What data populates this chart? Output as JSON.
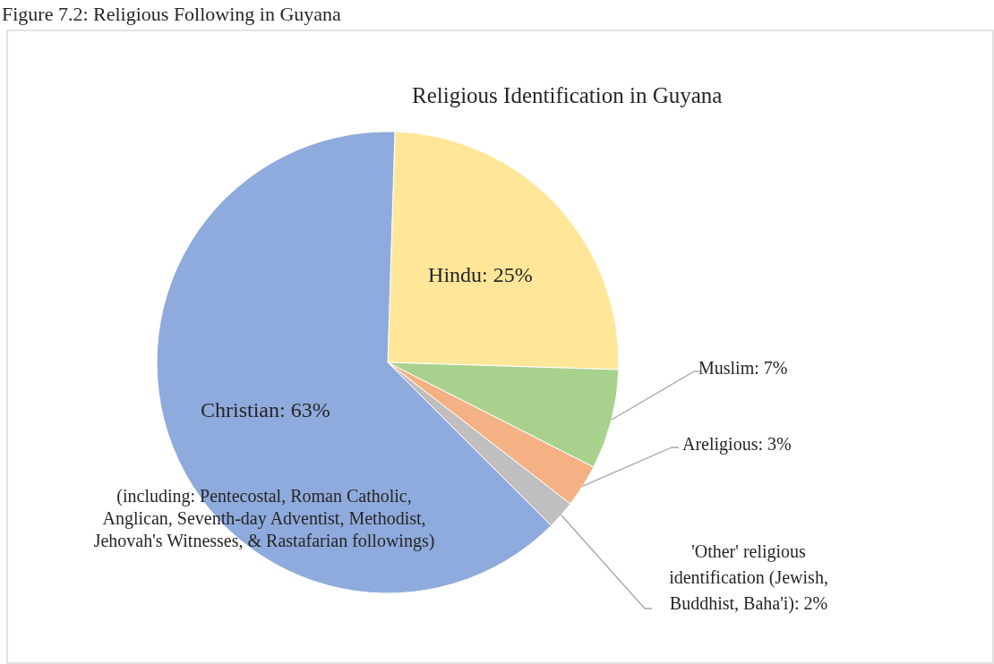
{
  "chart_data": {
    "type": "pie",
    "title": "Religious Identification in Guyana",
    "categories": [
      "Hindu",
      "Muslim",
      "Areligious",
      "'Other' religious identification (Jewish, Buddhist, Baha'i)",
      "Christian"
    ],
    "values": [
      25,
      7,
      3,
      2,
      63
    ],
    "colors": [
      "#ffe699",
      "#a9d18e",
      "#f4b183",
      "#bfbfbf",
      "#8faadc"
    ],
    "value_labels": [
      "25%",
      "7%",
      "3%",
      "2%",
      "63%"
    ],
    "annotations": [
      "Figure 7.2: Religious Following in Guyana",
      "(including: Pentecostal, Roman Catholic, Anglican,  Seventh-day Adventist, Methodist, Jehovah's Witnesses, & Rastafarian followings)"
    ],
    "legend": false
  }
}
